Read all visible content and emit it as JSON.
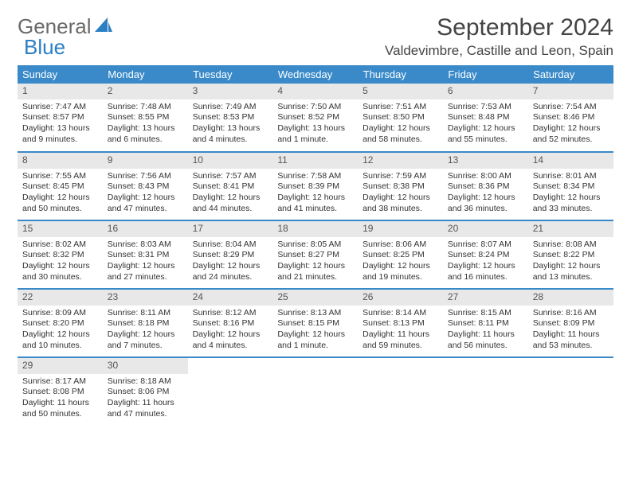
{
  "logo": {
    "word1": "General",
    "word2": "Blue"
  },
  "title": "September 2024",
  "location": "Valdevimbre, Castille and Leon, Spain",
  "colors": {
    "header_bg": "#3a8ac9",
    "header_text": "#ffffff",
    "daynum_bg": "#e8e8e8",
    "row_divider": "#3a8ac9",
    "logo_gray": "#6a6a6a",
    "logo_blue": "#2b7fc3"
  },
  "weekdays": [
    "Sunday",
    "Monday",
    "Tuesday",
    "Wednesday",
    "Thursday",
    "Friday",
    "Saturday"
  ],
  "days": [
    {
      "n": "1",
      "sr": "7:47 AM",
      "ss": "8:57 PM",
      "dl": "13 hours and 9 minutes."
    },
    {
      "n": "2",
      "sr": "7:48 AM",
      "ss": "8:55 PM",
      "dl": "13 hours and 6 minutes."
    },
    {
      "n": "3",
      "sr": "7:49 AM",
      "ss": "8:53 PM",
      "dl": "13 hours and 4 minutes."
    },
    {
      "n": "4",
      "sr": "7:50 AM",
      "ss": "8:52 PM",
      "dl": "13 hours and 1 minute."
    },
    {
      "n": "5",
      "sr": "7:51 AM",
      "ss": "8:50 PM",
      "dl": "12 hours and 58 minutes."
    },
    {
      "n": "6",
      "sr": "7:53 AM",
      "ss": "8:48 PM",
      "dl": "12 hours and 55 minutes."
    },
    {
      "n": "7",
      "sr": "7:54 AM",
      "ss": "8:46 PM",
      "dl": "12 hours and 52 minutes."
    },
    {
      "n": "8",
      "sr": "7:55 AM",
      "ss": "8:45 PM",
      "dl": "12 hours and 50 minutes."
    },
    {
      "n": "9",
      "sr": "7:56 AM",
      "ss": "8:43 PM",
      "dl": "12 hours and 47 minutes."
    },
    {
      "n": "10",
      "sr": "7:57 AM",
      "ss": "8:41 PM",
      "dl": "12 hours and 44 minutes."
    },
    {
      "n": "11",
      "sr": "7:58 AM",
      "ss": "8:39 PM",
      "dl": "12 hours and 41 minutes."
    },
    {
      "n": "12",
      "sr": "7:59 AM",
      "ss": "8:38 PM",
      "dl": "12 hours and 38 minutes."
    },
    {
      "n": "13",
      "sr": "8:00 AM",
      "ss": "8:36 PM",
      "dl": "12 hours and 36 minutes."
    },
    {
      "n": "14",
      "sr": "8:01 AM",
      "ss": "8:34 PM",
      "dl": "12 hours and 33 minutes."
    },
    {
      "n": "15",
      "sr": "8:02 AM",
      "ss": "8:32 PM",
      "dl": "12 hours and 30 minutes."
    },
    {
      "n": "16",
      "sr": "8:03 AM",
      "ss": "8:31 PM",
      "dl": "12 hours and 27 minutes."
    },
    {
      "n": "17",
      "sr": "8:04 AM",
      "ss": "8:29 PM",
      "dl": "12 hours and 24 minutes."
    },
    {
      "n": "18",
      "sr": "8:05 AM",
      "ss": "8:27 PM",
      "dl": "12 hours and 21 minutes."
    },
    {
      "n": "19",
      "sr": "8:06 AM",
      "ss": "8:25 PM",
      "dl": "12 hours and 19 minutes."
    },
    {
      "n": "20",
      "sr": "8:07 AM",
      "ss": "8:24 PM",
      "dl": "12 hours and 16 minutes."
    },
    {
      "n": "21",
      "sr": "8:08 AM",
      "ss": "8:22 PM",
      "dl": "12 hours and 13 minutes."
    },
    {
      "n": "22",
      "sr": "8:09 AM",
      "ss": "8:20 PM",
      "dl": "12 hours and 10 minutes."
    },
    {
      "n": "23",
      "sr": "8:11 AM",
      "ss": "8:18 PM",
      "dl": "12 hours and 7 minutes."
    },
    {
      "n": "24",
      "sr": "8:12 AM",
      "ss": "8:16 PM",
      "dl": "12 hours and 4 minutes."
    },
    {
      "n": "25",
      "sr": "8:13 AM",
      "ss": "8:15 PM",
      "dl": "12 hours and 1 minute."
    },
    {
      "n": "26",
      "sr": "8:14 AM",
      "ss": "8:13 PM",
      "dl": "11 hours and 59 minutes."
    },
    {
      "n": "27",
      "sr": "8:15 AM",
      "ss": "8:11 PM",
      "dl": "11 hours and 56 minutes."
    },
    {
      "n": "28",
      "sr": "8:16 AM",
      "ss": "8:09 PM",
      "dl": "11 hours and 53 minutes."
    },
    {
      "n": "29",
      "sr": "8:17 AM",
      "ss": "8:08 PM",
      "dl": "11 hours and 50 minutes."
    },
    {
      "n": "30",
      "sr": "8:18 AM",
      "ss": "8:06 PM",
      "dl": "11 hours and 47 minutes."
    }
  ],
  "labels": {
    "sunrise": "Sunrise:",
    "sunset": "Sunset:",
    "daylight": "Daylight:"
  }
}
